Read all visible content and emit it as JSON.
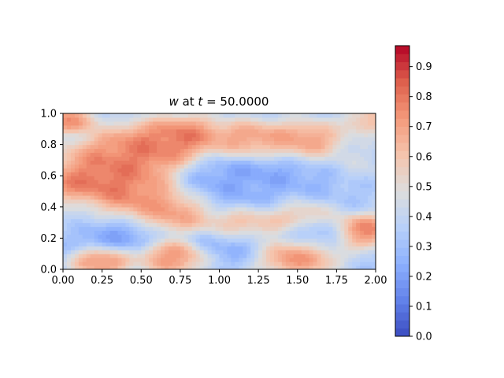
{
  "chart_data": {
    "type": "heatmap",
    "title": {
      "var": "w",
      "mid": " at ",
      "tvar": "t",
      "eq": " = 50.0000"
    },
    "xlabel": "",
    "ylabel": "",
    "xlim": [
      0,
      2
    ],
    "ylim": [
      0,
      1
    ],
    "x_ticks": [
      "0.00",
      "0.25",
      "0.50",
      "0.75",
      "1.00",
      "1.25",
      "1.50",
      "1.75",
      "2.00"
    ],
    "y_ticks": [
      "0.0",
      "0.2",
      "0.4",
      "0.6",
      "0.8",
      "1.0"
    ],
    "colormap": "coolwarm",
    "colorbar": {
      "range": [
        0,
        0.97
      ],
      "ticks": [
        "0.0",
        "0.1",
        "0.2",
        "0.3",
        "0.4",
        "0.5",
        "0.6",
        "0.7",
        "0.8",
        "0.9"
      ],
      "levels": 36
    },
    "features": [
      {
        "x": 0.2,
        "y": 0.55,
        "value": 0.9,
        "radius": 0.12
      },
      {
        "x": 0.35,
        "y": 0.68,
        "value": 0.88,
        "radius": 0.14
      },
      {
        "x": 0.55,
        "y": 0.78,
        "value": 0.88,
        "radius": 0.12
      },
      {
        "x": 0.78,
        "y": 0.85,
        "value": 0.92,
        "radius": 0.1
      },
      {
        "x": 0.45,
        "y": 0.48,
        "value": 0.85,
        "radius": 0.12
      },
      {
        "x": 0.75,
        "y": 0.38,
        "value": 0.85,
        "radius": 0.1
      },
      {
        "x": 1.2,
        "y": 0.82,
        "value": 0.88,
        "radius": 0.1
      },
      {
        "x": 1.55,
        "y": 0.82,
        "value": 0.85,
        "radius": 0.1
      },
      {
        "x": 1.25,
        "y": 0.58,
        "value": 0.15,
        "radius": 0.18
      },
      {
        "x": 1.05,
        "y": 0.48,
        "value": 0.25,
        "radius": 0.12
      },
      {
        "x": 1.45,
        "y": 0.5,
        "value": 0.3,
        "radius": 0.14
      },
      {
        "x": 1.15,
        "y": 0.3,
        "value": 0.85,
        "radius": 0.1
      },
      {
        "x": 1.5,
        "y": 0.36,
        "value": 0.8,
        "radius": 0.09
      },
      {
        "x": 1.1,
        "y": 0.18,
        "value": 0.2,
        "radius": 0.1
      },
      {
        "x": 1.6,
        "y": 0.22,
        "value": 0.18,
        "radius": 0.09
      },
      {
        "x": 0.3,
        "y": 0.22,
        "value": 0.18,
        "radius": 0.1
      },
      {
        "x": 0.25,
        "y": 0.06,
        "value": 0.9,
        "radius": 0.07
      },
      {
        "x": 0.7,
        "y": 0.08,
        "value": 0.85,
        "radius": 0.08
      },
      {
        "x": 1.5,
        "y": 0.1,
        "value": 0.88,
        "radius": 0.1
      },
      {
        "x": 1.92,
        "y": 0.25,
        "value": 0.9,
        "radius": 0.08
      },
      {
        "x": 0.05,
        "y": 0.95,
        "value": 0.85,
        "radius": 0.06
      },
      {
        "x": 0.02,
        "y": 0.55,
        "value": 0.8,
        "radius": 0.05
      },
      {
        "x": 1.9,
        "y": 0.7,
        "value": 0.45,
        "radius": 0.1
      },
      {
        "x": 0.1,
        "y": 0.35,
        "value": 0.4,
        "radius": 0.1
      },
      {
        "x": 1.95,
        "y": 0.95,
        "value": 0.7,
        "radius": 0.06
      }
    ],
    "background_value": 0.35
  }
}
